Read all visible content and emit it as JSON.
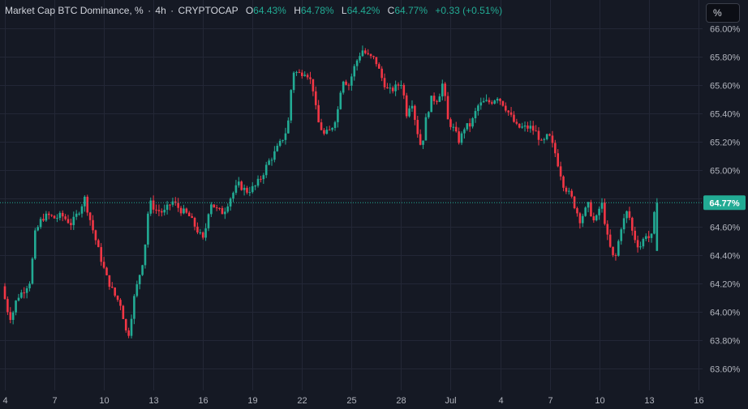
{
  "legend": {
    "title": "Market Cap BTC Dominance, %",
    "interval": "4h",
    "source": "CRYPTOCAP",
    "open_key": "O",
    "open": "64.43%",
    "high_key": "H",
    "high": "64.78%",
    "low_key": "L",
    "low": "64.42%",
    "close_key": "C",
    "close": "64.77%",
    "change": "+0.33 (+0.51%)"
  },
  "toolbar": {
    "scale_button": "%"
  },
  "colors": {
    "up": "#22ab94",
    "down": "#f23645",
    "bg": "#151924",
    "grid": "#232736"
  },
  "chart_data": {
    "type": "candlestick",
    "title": "Market Cap BTC Dominance, %",
    "ylim": [
      63.5,
      66.05
    ],
    "y_ticks": [
      63.6,
      63.8,
      64.0,
      64.2,
      64.4,
      64.6,
      64.8,
      65.0,
      65.2,
      65.4,
      65.6,
      65.8,
      66.0
    ],
    "y_tick_labels": [
      "63.60%",
      "63.80%",
      "64.00%",
      "64.20%",
      "64.40%",
      "64.60%",
      "64.80%",
      "65.00%",
      "65.20%",
      "65.40%",
      "65.60%",
      "65.80%",
      "66.00%"
    ],
    "x_ticks": [
      "4",
      "7",
      "10",
      "13",
      "16",
      "19",
      "22",
      "25",
      "28",
      "Jul",
      "4",
      "7",
      "10",
      "13",
      "16"
    ],
    "x_tick_day_index": [
      0,
      3,
      6,
      9,
      12,
      15,
      18,
      21,
      24,
      27,
      30,
      33,
      36,
      39,
      42
    ],
    "last_price": 64.77,
    "last_price_label": "64.77%",
    "anchors": [
      [
        0.0,
        64.18
      ],
      [
        0.3,
        64.02
      ],
      [
        0.55,
        63.95
      ],
      [
        0.9,
        64.1
      ],
      [
        1.3,
        64.15
      ],
      [
        1.7,
        64.22
      ],
      [
        2.0,
        64.55
      ],
      [
        2.4,
        64.66
      ],
      [
        2.8,
        64.68
      ],
      [
        3.2,
        64.66
      ],
      [
        3.6,
        64.68
      ],
      [
        4.2,
        64.62
      ],
      [
        4.6,
        64.7
      ],
      [
        5.0,
        64.8
      ],
      [
        5.4,
        64.62
      ],
      [
        5.8,
        64.45
      ],
      [
        6.3,
        64.25
      ],
      [
        6.8,
        64.12
      ],
      [
        7.2,
        64.05
      ],
      [
        7.6,
        63.8
      ],
      [
        8.0,
        64.1
      ],
      [
        8.3,
        64.25
      ],
      [
        8.6,
        64.4
      ],
      [
        8.9,
        64.78
      ],
      [
        9.3,
        64.72
      ],
      [
        9.8,
        64.7
      ],
      [
        10.3,
        64.78
      ],
      [
        10.8,
        64.72
      ],
      [
        11.3,
        64.68
      ],
      [
        11.7,
        64.6
      ],
      [
        12.2,
        64.5
      ],
      [
        12.6,
        64.78
      ],
      [
        13.0,
        64.72
      ],
      [
        13.4,
        64.7
      ],
      [
        13.8,
        64.8
      ],
      [
        14.3,
        64.9
      ],
      [
        14.8,
        64.85
      ],
      [
        15.3,
        64.88
      ],
      [
        15.7,
        64.95
      ],
      [
        16.1,
        65.05
      ],
      [
        16.5,
        65.12
      ],
      [
        16.9,
        65.2
      ],
      [
        17.3,
        65.3
      ],
      [
        17.6,
        65.7
      ],
      [
        18.0,
        65.68
      ],
      [
        18.4,
        65.7
      ],
      [
        18.8,
        65.6
      ],
      [
        19.1,
        65.35
      ],
      [
        19.5,
        65.25
      ],
      [
        19.9,
        65.28
      ],
      [
        20.3,
        65.4
      ],
      [
        20.6,
        65.65
      ],
      [
        21.0,
        65.6
      ],
      [
        21.4,
        65.75
      ],
      [
        21.8,
        65.85
      ],
      [
        22.2,
        65.8
      ],
      [
        22.6,
        65.78
      ],
      [
        23.0,
        65.65
      ],
      [
        23.4,
        65.55
      ],
      [
        23.8,
        65.58
      ],
      [
        24.2,
        65.62
      ],
      [
        24.5,
        65.4
      ],
      [
        24.8,
        65.5
      ],
      [
        25.1,
        65.3
      ],
      [
        25.4,
        65.15
      ],
      [
        25.7,
        65.38
      ],
      [
        26.0,
        65.5
      ],
      [
        26.4,
        65.5
      ],
      [
        26.7,
        65.62
      ],
      [
        27.0,
        65.35
      ],
      [
        27.3,
        65.3
      ],
      [
        27.7,
        65.2
      ],
      [
        28.0,
        65.3
      ],
      [
        28.4,
        65.32
      ],
      [
        28.8,
        65.45
      ],
      [
        29.2,
        65.48
      ],
      [
        29.6,
        65.48
      ],
      [
        30.0,
        65.52
      ],
      [
        30.4,
        65.46
      ],
      [
        30.8,
        65.38
      ],
      [
        31.2,
        65.3
      ],
      [
        31.6,
        65.3
      ],
      [
        32.0,
        65.3
      ],
      [
        32.4,
        65.26
      ],
      [
        32.7,
        65.18
      ],
      [
        33.1,
        65.25
      ],
      [
        33.5,
        65.12
      ],
      [
        34.0,
        64.9
      ],
      [
        34.5,
        64.8
      ],
      [
        35.0,
        64.65
      ],
      [
        35.5,
        64.75
      ],
      [
        35.9,
        64.62
      ],
      [
        36.3,
        64.78
      ],
      [
        36.7,
        64.5
      ],
      [
        37.1,
        64.35
      ],
      [
        37.5,
        64.6
      ],
      [
        37.9,
        64.72
      ],
      [
        38.2,
        64.55
      ],
      [
        38.6,
        64.45
      ],
      [
        39.0,
        64.55
      ],
      [
        39.3,
        64.5
      ],
      [
        39.6,
        64.77
      ]
    ]
  }
}
